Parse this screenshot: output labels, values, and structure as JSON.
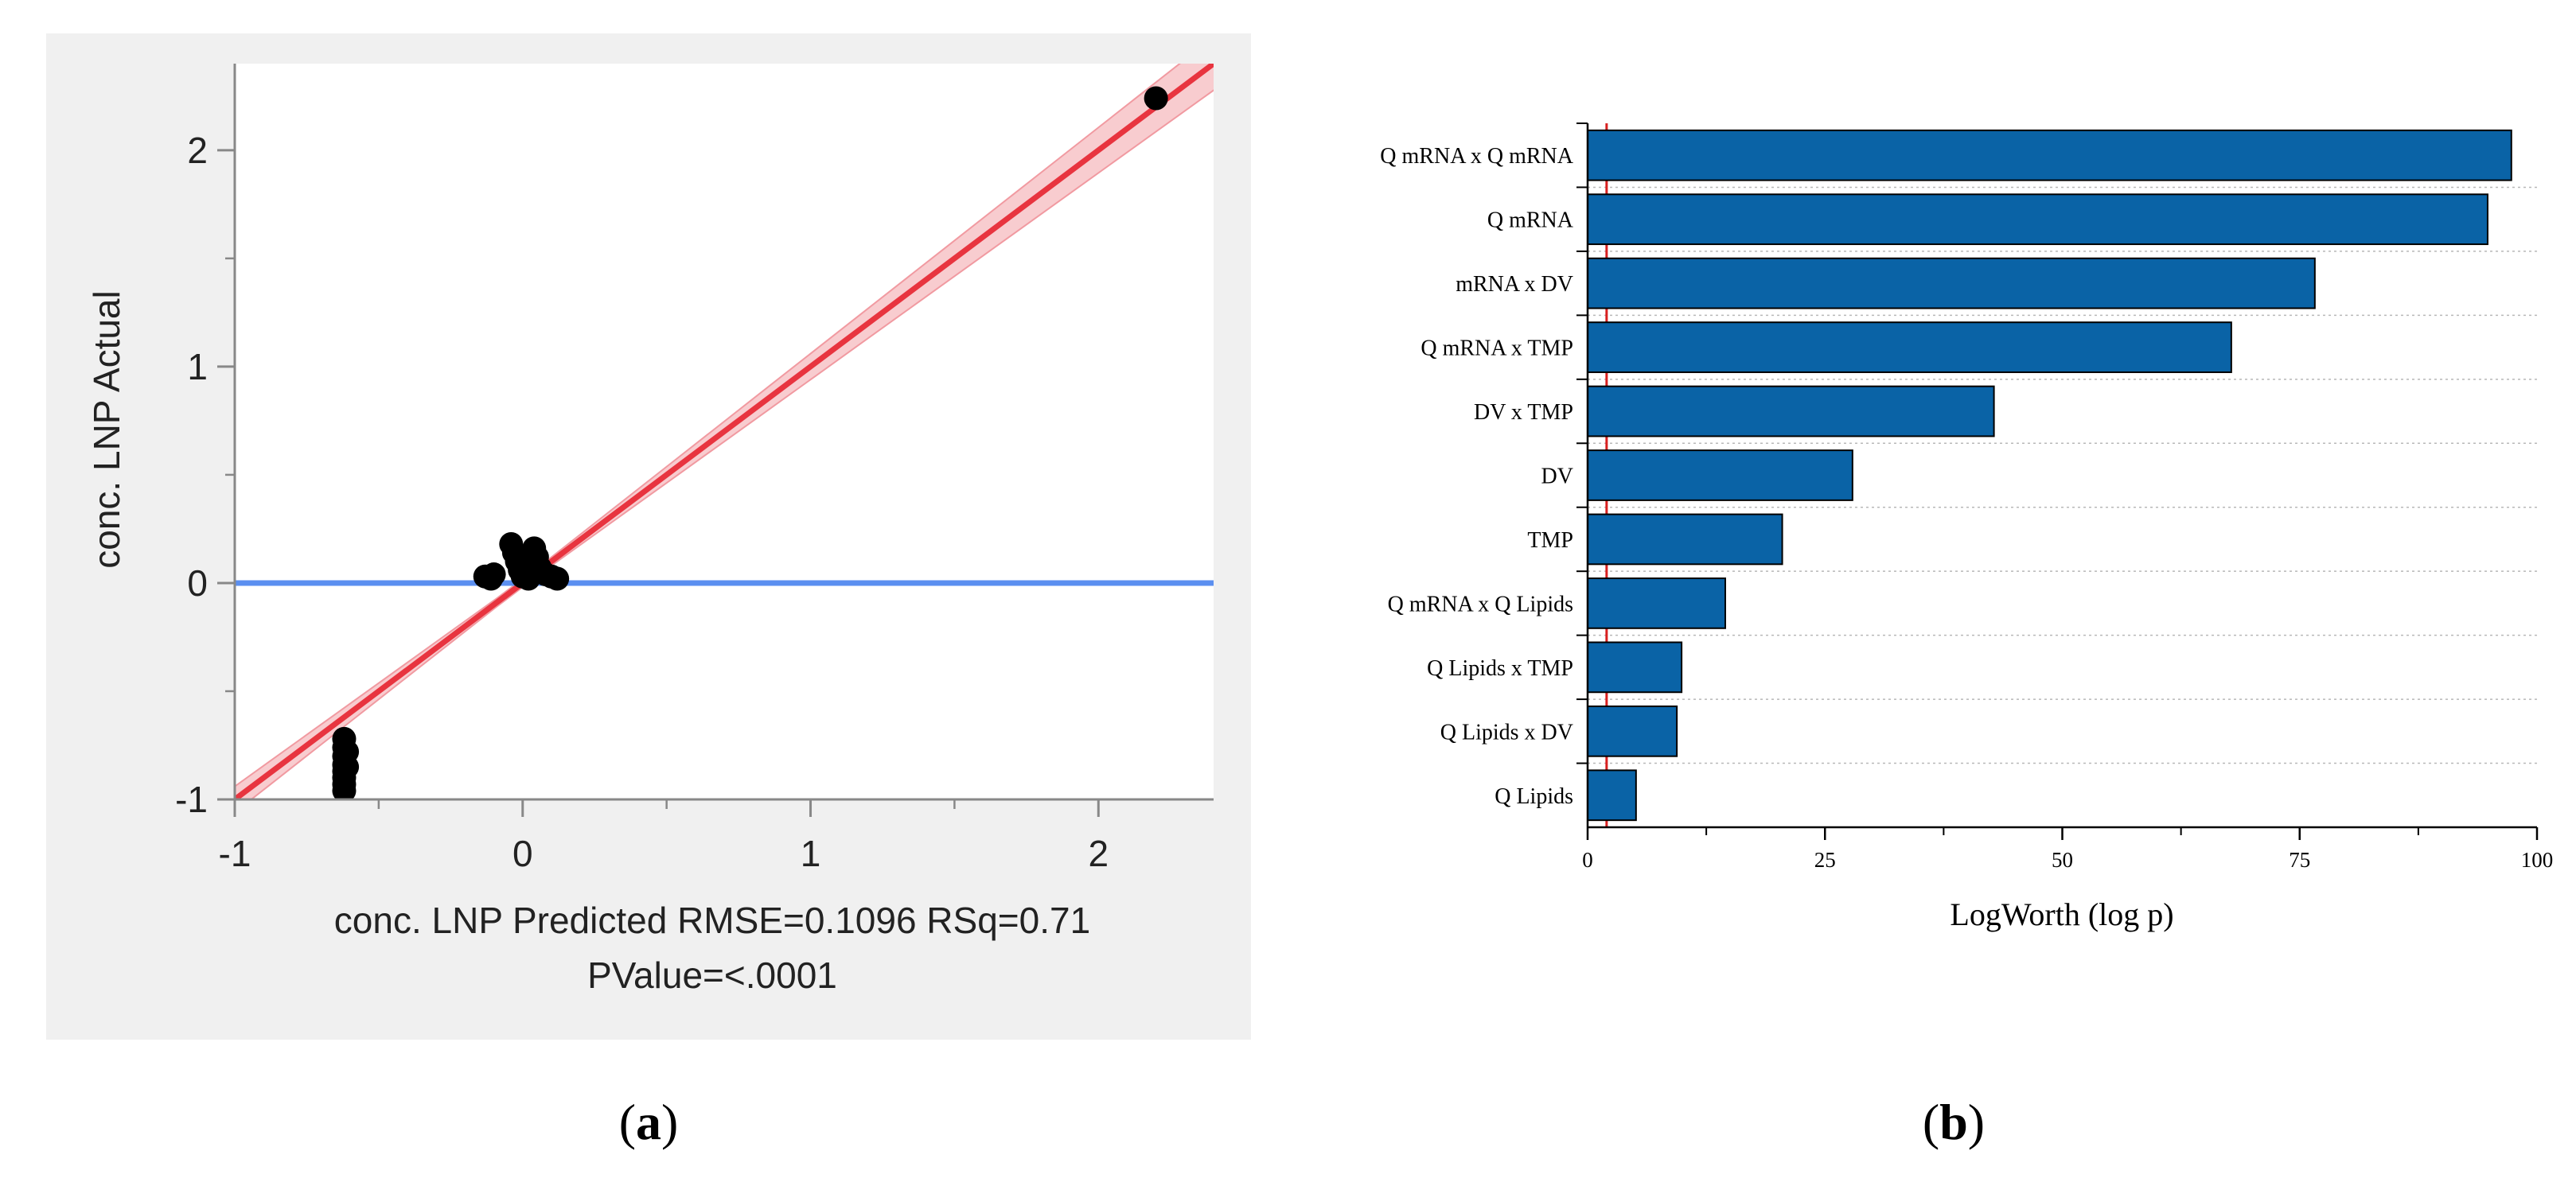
{
  "panel_a": {
    "label_letter": "a",
    "xlabel_line1": "conc. LNP Predicted RMSE=0.1096 RSq=0.71",
    "xlabel_line2": "PValue=<.0001",
    "ylabel": "conc. LNP Actual",
    "colors": {
      "background": "#f0f0f0",
      "fit_line": "#e8343f",
      "confidence_band": "#f7c3c7",
      "mean_line": "#5b8ff0",
      "points": "#000000"
    }
  },
  "panel_b": {
    "label_letter": "b",
    "bar_color": "#0a63a6",
    "xlabel": "LogWorth (log p)"
  },
  "chart_data": [
    {
      "type": "scatter",
      "title": "",
      "xlabel": "conc. LNP Predicted RMSE=0.1096 RSq=0.71",
      "ylabel": "conc. LNP Actual",
      "xlim": [
        -1,
        2.4
      ],
      "ylim": [
        -1,
        2.4
      ],
      "xticks": [
        -1,
        0,
        1,
        2
      ],
      "yticks": [
        -1,
        0,
        1,
        2
      ],
      "grid": false,
      "mean_line_y": 0,
      "fit_line": {
        "slope": 1,
        "intercept": 0
      },
      "annotation": "PValue=<.0001",
      "points": [
        [
          -0.62,
          -0.72
        ],
        [
          -0.62,
          -0.76
        ],
        [
          -0.62,
          -0.8
        ],
        [
          -0.62,
          -0.84
        ],
        [
          -0.62,
          -0.87
        ],
        [
          -0.62,
          -0.9
        ],
        [
          -0.62,
          -0.93
        ],
        [
          -0.62,
          -0.96
        ],
        [
          -0.61,
          -0.78
        ],
        [
          -0.61,
          -0.85
        ],
        [
          -0.13,
          0.03
        ],
        [
          -0.11,
          0.02
        ],
        [
          -0.1,
          0.04
        ],
        [
          -0.04,
          0.18
        ],
        [
          -0.03,
          0.14
        ],
        [
          -0.02,
          0.1
        ],
        [
          -0.01,
          0.06
        ],
        [
          0.0,
          0.03
        ],
        [
          0.01,
          0.08
        ],
        [
          0.02,
          0.02
        ],
        [
          0.04,
          0.16
        ],
        [
          0.05,
          0.12
        ],
        [
          0.06,
          0.07
        ],
        [
          0.08,
          0.04
        ],
        [
          0.1,
          0.03
        ],
        [
          0.12,
          0.02
        ],
        [
          2.2,
          2.24
        ]
      ]
    },
    {
      "type": "bar",
      "orientation": "horizontal",
      "title": "",
      "xlabel": "LogWorth (log p)",
      "ylabel": "",
      "xlim": [
        0,
        100
      ],
      "xticks": [
        0,
        25,
        50,
        75,
        100
      ],
      "reference_line_x": 2,
      "grid": "horizontal dotted",
      "categories": [
        "Q mRNA x Q mRNA",
        "Q mRNA",
        "mRNA x DV",
        "Q mRNA x TMP",
        "DV x TMP",
        "DV",
        "TMP",
        "Q mRNA x Q Lipids",
        "Q Lipids x TMP",
        "Q Lipids x DV",
        "Q Lipids"
      ],
      "values": [
        97.3,
        94.8,
        76.6,
        67.8,
        42.8,
        27.9,
        20.5,
        14.5,
        9.9,
        9.4,
        5.1
      ]
    }
  ]
}
